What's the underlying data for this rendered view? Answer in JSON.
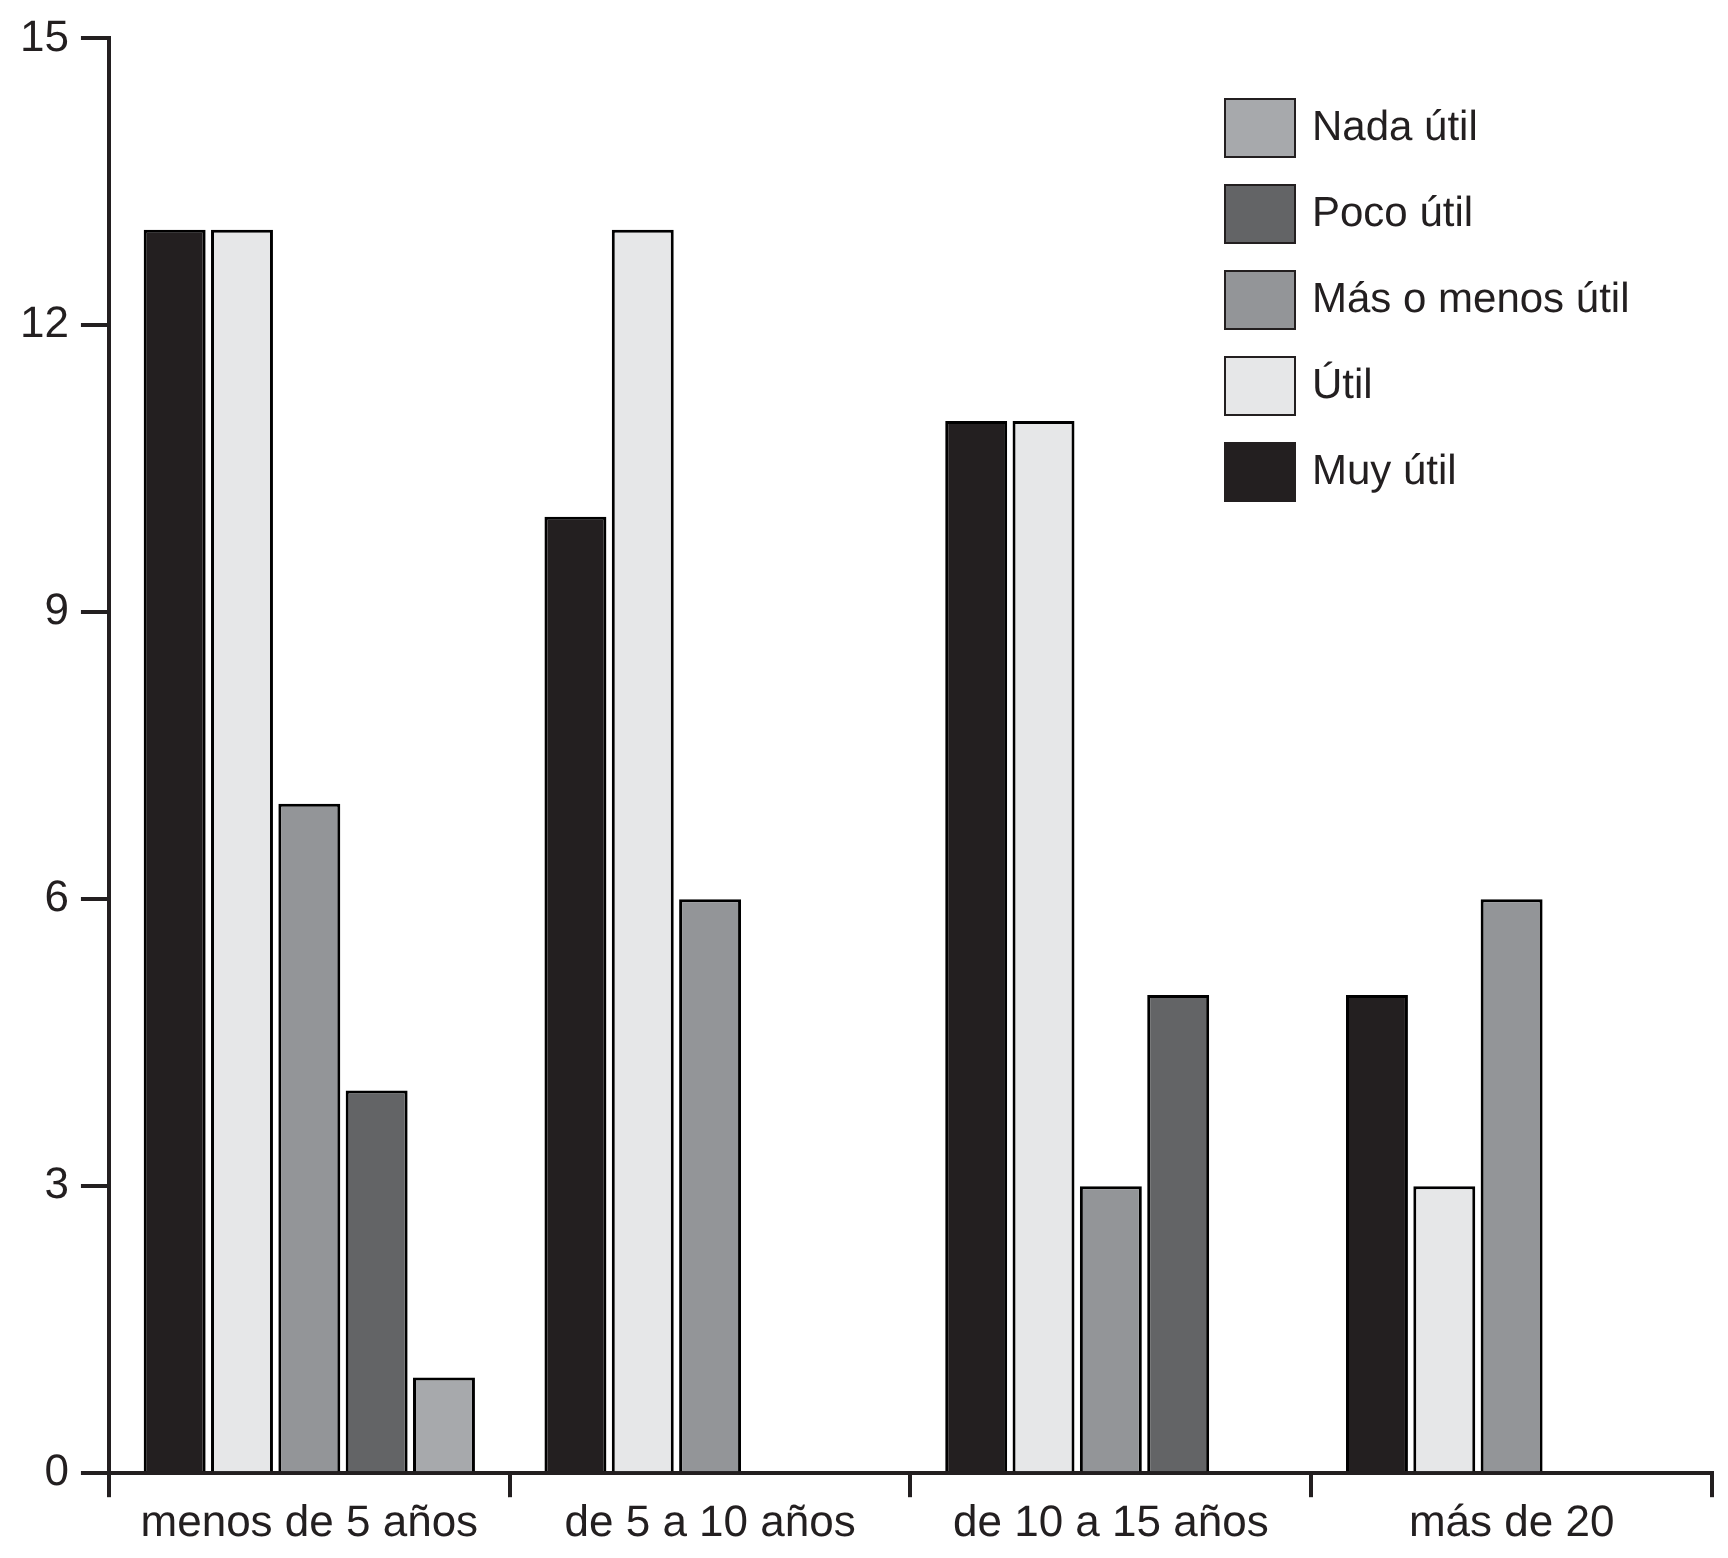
{
  "chart_data": {
    "type": "bar",
    "categories": [
      "menos de 5 años",
      "de 5 a 10 años",
      "de 10 a 15 años",
      "más de 20"
    ],
    "series": [
      {
        "name": "Muy útil",
        "color": "#231f20",
        "values": [
          13,
          10,
          11,
          5
        ]
      },
      {
        "name": "Útil",
        "color": "#e6e7e8",
        "values": [
          13,
          13,
          11,
          3
        ]
      },
      {
        "name": "Más o menos útil",
        "color": "#939598",
        "values": [
          7,
          6,
          3,
          6
        ]
      },
      {
        "name": "Poco útil",
        "color": "#636466",
        "values": [
          4,
          0,
          5,
          0
        ]
      },
      {
        "name": "Nada útil",
        "color": "#a7a9ac",
        "values": [
          1,
          0,
          0,
          0
        ]
      }
    ],
    "ylim": [
      0,
      15
    ],
    "yticks": [
      0,
      3,
      6,
      9,
      12,
      15
    ],
    "grid": false,
    "legend": "top right"
  }
}
